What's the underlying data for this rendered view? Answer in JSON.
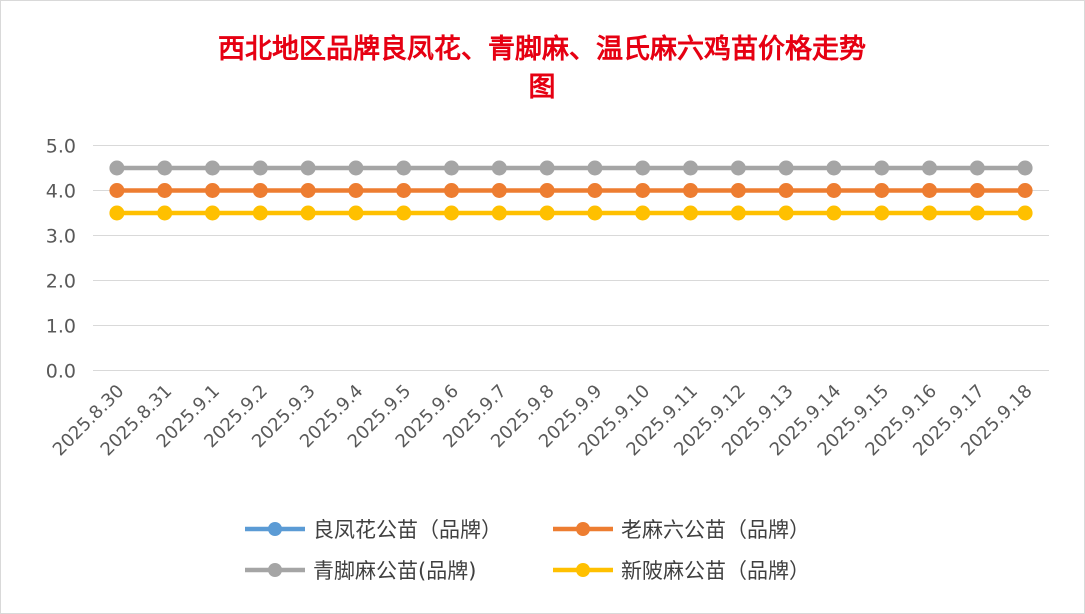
{
  "chart_data": {
    "type": "line",
    "title_lines": [
      "西北地区品牌良凤花、青脚麻、温氏麻六鸡苗价格走势",
      "图"
    ],
    "xlabel": "",
    "ylabel": "",
    "ylim": [
      0,
      5
    ],
    "ytick_labels": [
      "0.0",
      "1.0",
      "2.0",
      "3.0",
      "4.0",
      "5.0"
    ],
    "categories": [
      "2025.8.30",
      "2025.8.31",
      "2025.9.1",
      "2025.9.2",
      "2025.9.3",
      "2025.9.4",
      "2025.9.5",
      "2025.9.6",
      "2025.9.7",
      "2025.9.8",
      "2025.9.9",
      "2025.9.10",
      "2025.9.11",
      "2025.9.12",
      "2025.9.13",
      "2025.9.14",
      "2025.9.15",
      "2025.9.16",
      "2025.9.17",
      "2025.9.18"
    ],
    "grid": "horizontal",
    "legend_position": "bottom",
    "series": [
      {
        "name": "良凤花公苗（品牌）",
        "color": "#5b9bd5",
        "values": [
          null,
          null,
          null,
          null,
          null,
          null,
          null,
          null,
          null,
          null,
          null,
          null,
          null,
          null,
          null,
          null,
          null,
          null,
          null,
          null
        ]
      },
      {
        "name": "老麻六公苗（品牌）",
        "color": "#ed7d31",
        "values": [
          4.0,
          4.0,
          4.0,
          4.0,
          4.0,
          4.0,
          4.0,
          4.0,
          4.0,
          4.0,
          4.0,
          4.0,
          4.0,
          4.0,
          4.0,
          4.0,
          4.0,
          4.0,
          4.0,
          4.0
        ]
      },
      {
        "name": "青脚麻公苗(品牌)",
        "color": "#a5a5a5",
        "values": [
          4.5,
          4.5,
          4.5,
          4.5,
          4.5,
          4.5,
          4.5,
          4.5,
          4.5,
          4.5,
          4.5,
          4.5,
          4.5,
          4.5,
          4.5,
          4.5,
          4.5,
          4.5,
          4.5,
          4.5
        ]
      },
      {
        "name": "新陂麻公苗（品牌）",
        "color": "#ffc000",
        "values": [
          3.5,
          3.5,
          3.5,
          3.5,
          3.5,
          3.5,
          3.5,
          3.5,
          3.5,
          3.5,
          3.5,
          3.5,
          3.5,
          3.5,
          3.5,
          3.5,
          3.5,
          3.5,
          3.5,
          3.5
        ]
      }
    ]
  }
}
